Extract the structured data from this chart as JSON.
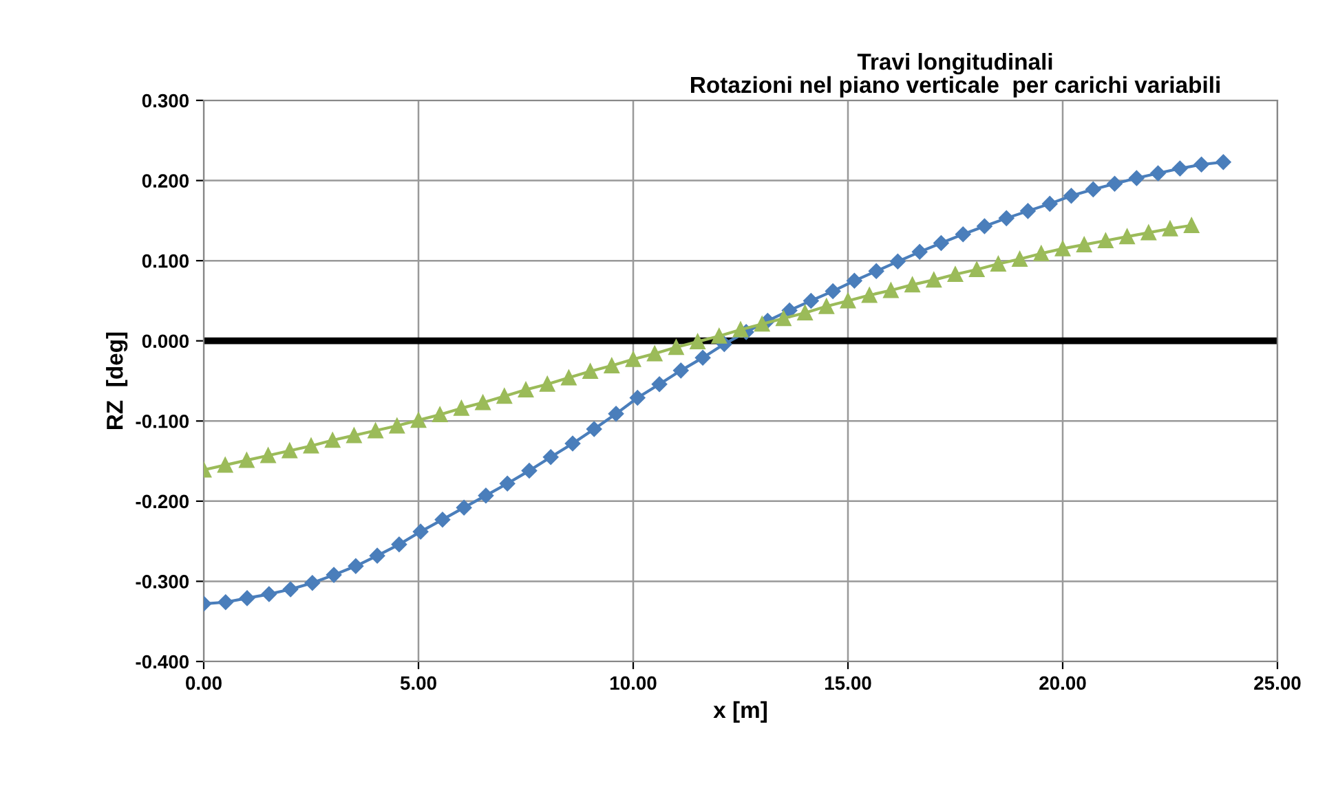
{
  "chart_data": {
    "type": "line",
    "title": "Travi longitudinali\nRotazioni nel piano verticale  per carichi variabili",
    "xlabel": "x [m]",
    "ylabel": "RZ  [deg]",
    "xlim": [
      0,
      25
    ],
    "ylim": [
      -0.4,
      0.3
    ],
    "xticks": [
      {
        "value": 0,
        "label": "0.00"
      },
      {
        "value": 5,
        "label": "5.00"
      },
      {
        "value": 10,
        "label": "10.00"
      },
      {
        "value": 15,
        "label": "15.00"
      },
      {
        "value": 20,
        "label": "20.00"
      },
      {
        "value": 25,
        "label": "25.00"
      }
    ],
    "yticks": [
      {
        "value": -0.4,
        "label": "-0.400"
      },
      {
        "value": -0.3,
        "label": "-0.300"
      },
      {
        "value": -0.2,
        "label": "-0.200"
      },
      {
        "value": -0.1,
        "label": "-0.100"
      },
      {
        "value": 0,
        "label": "0.000"
      },
      {
        "value": 0.1,
        "label": "0.100"
      },
      {
        "value": 0.2,
        "label": "0.200"
      },
      {
        "value": 0.3,
        "label": "0.300"
      }
    ],
    "grid": true,
    "legend": false,
    "line_style": "solid",
    "ref_lines": [
      {
        "axis": "y",
        "value": 0,
        "color": "#000000"
      }
    ],
    "series": [
      {
        "color": "#4a7ebb",
        "marker": "diamond",
        "x": [
          0,
          0.51,
          1.01,
          1.52,
          2.02,
          2.53,
          3.03,
          3.54,
          4.04,
          4.55,
          5.05,
          5.56,
          6.06,
          6.57,
          7.07,
          7.58,
          8.08,
          8.59,
          9.09,
          9.6,
          10.1,
          10.61,
          11.11,
          11.62,
          12.12,
          12.63,
          13.13,
          13.64,
          14.14,
          14.65,
          15.15,
          15.66,
          16.16,
          16.67,
          17.17,
          17.68,
          18.18,
          18.69,
          19.19,
          19.7,
          20.2,
          20.71,
          21.21,
          21.72,
          22.22,
          22.73,
          23.23,
          23.74
        ],
        "values": [
          -0.328,
          -0.326,
          -0.321,
          -0.316,
          -0.31,
          -0.302,
          -0.292,
          -0.281,
          -0.268,
          -0.254,
          -0.238,
          -0.223,
          -0.208,
          -0.193,
          -0.178,
          -0.162,
          -0.145,
          -0.128,
          -0.11,
          -0.091,
          -0.071,
          -0.054,
          -0.037,
          -0.021,
          -0.004,
          0.011,
          0.025,
          0.038,
          0.05,
          0.062,
          0.075,
          0.087,
          0.099,
          0.111,
          0.122,
          0.133,
          0.143,
          0.153,
          0.162,
          0.171,
          0.181,
          0.189,
          0.196,
          0.203,
          0.209,
          0.215,
          0.22,
          0.223
        ]
      },
      {
        "color": "#9bbb59",
        "marker": "triangle",
        "x": [
          0,
          0.5,
          1,
          1.5,
          2,
          2.5,
          3,
          3.5,
          4,
          4.5,
          5,
          5.5,
          6,
          6.5,
          7,
          7.5,
          8,
          8.5,
          9,
          9.5,
          10,
          10.5,
          11,
          11.5,
          12,
          12.5,
          13,
          13.5,
          14,
          14.5,
          15,
          15.5,
          16,
          16.5,
          17,
          17.5,
          18,
          18.5,
          19,
          19.5,
          20,
          20.5,
          21,
          21.5,
          22,
          22.5,
          23
        ],
        "values": [
          -0.161,
          -0.155,
          -0.149,
          -0.143,
          -0.137,
          -0.131,
          -0.124,
          -0.118,
          -0.112,
          -0.106,
          -0.099,
          -0.092,
          -0.084,
          -0.077,
          -0.069,
          -0.061,
          -0.054,
          -0.046,
          -0.038,
          -0.031,
          -0.023,
          -0.016,
          -0.008,
          -0.001,
          0.006,
          0.014,
          0.021,
          0.028,
          0.035,
          0.043,
          0.05,
          0.057,
          0.063,
          0.07,
          0.076,
          0.083,
          0.089,
          0.096,
          0.102,
          0.109,
          0.115,
          0.12,
          0.125,
          0.13,
          0.135,
          0.14,
          0.144
        ]
      }
    ]
  }
}
